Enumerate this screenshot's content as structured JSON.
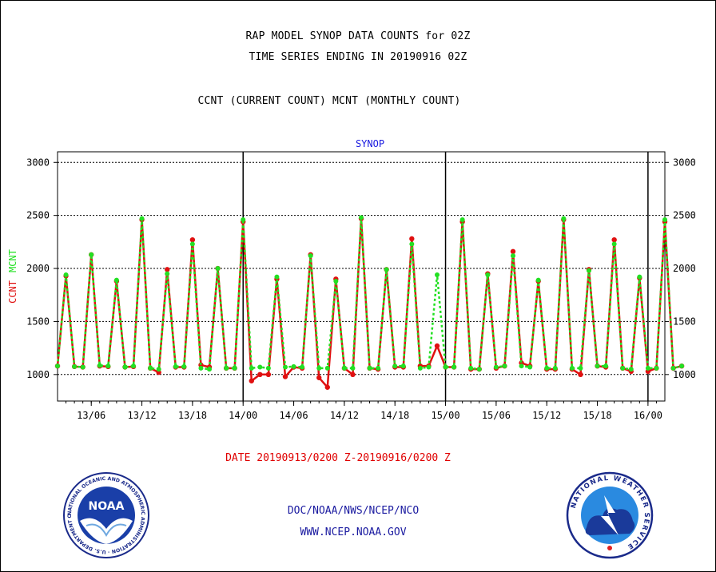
{
  "header": {
    "title_line1": "RAP MODEL SYNOP DATA COUNTS for 02Z",
    "title_line2": "TIME SERIES ENDING IN 20190916 02Z",
    "subtitle": "CCNT (CURRENT COUNT) MCNT (MONTHLY COUNT)"
  },
  "footer": {
    "date_range": "DATE 20190913/0200 Z-20190916/0200 Z",
    "org": "DOC/NOAA/NWS/NCEP/NCO",
    "url": "WWW.NCEP.NOAA.GOV"
  },
  "logos": {
    "left": {
      "name": "noaa-logo",
      "text": "NOAA",
      "ring_text": "NATIONAL OCEANIC AND ATMOSPHERIC ADMINISTRATION · U.S. DEPARTMENT OF COMMERCE"
    },
    "right": {
      "name": "nws-logo",
      "ring_text": "NATIONAL WEATHER SERVICE"
    }
  },
  "colors": {
    "ccnt": "#e01010",
    "mcnt": "#22e022",
    "legend_text": "#1a1ae0"
  },
  "chart_data": {
    "type": "line",
    "title": "SYNOP",
    "ylabel_ccnt": "CCNT",
    "ylabel_mcnt": "MCNT",
    "ylim": [
      750,
      3100
    ],
    "yticks": [
      500,
      1000,
      1500,
      2000,
      2500,
      3000
    ],
    "x_range_hours": [
      0,
      72
    ],
    "xticks": [
      {
        "h": 4,
        "label": "13/06"
      },
      {
        "h": 10,
        "label": "13/12"
      },
      {
        "h": 16,
        "label": "13/18"
      },
      {
        "h": 22,
        "label": "14/00"
      },
      {
        "h": 28,
        "label": "14/06"
      },
      {
        "h": 34,
        "label": "14/12"
      },
      {
        "h": 40,
        "label": "14/18"
      },
      {
        "h": 46,
        "label": "15/00"
      },
      {
        "h": 52,
        "label": "15/06"
      },
      {
        "h": 58,
        "label": "15/12"
      },
      {
        "h": 64,
        "label": "15/18"
      },
      {
        "h": 70,
        "label": "16/00"
      }
    ],
    "day_boundaries_hours": [
      22,
      46,
      70
    ],
    "grid": true,
    "series": [
      {
        "name": "CCNT",
        "values": [
          1080,
          1930,
          1075,
          1070,
          2130,
          1080,
          1075,
          1880,
          1070,
          1075,
          2460,
          1060,
          1020,
          1990,
          1070,
          1070,
          2270,
          1090,
          1070,
          2000,
          1060,
          1060,
          2440,
          940,
          1000,
          1000,
          1900,
          980,
          1070,
          1060,
          2130,
          970,
          880,
          1900,
          1060,
          1000,
          2470,
          1060,
          1050,
          1990,
          1070,
          1070,
          2280,
          1080,
          1080,
          1270,
          1070,
          1070,
          2440,
          1050,
          1050,
          1950,
          1060,
          1080,
          2160,
          1110,
          1080,
          1880,
          1050,
          1050,
          2460,
          1050,
          1000,
          1990,
          1080,
          1070,
          2270,
          1060,
          1030,
          1910,
          1030,
          1060,
          2440,
          1060,
          1080
        ]
      },
      {
        "name": "MCNT",
        "values": [
          1080,
          1940,
          1075,
          1070,
          2130,
          1085,
          1080,
          1890,
          1070,
          1080,
          2470,
          1060,
          1050,
          1950,
          1075,
          1075,
          2230,
          1060,
          1050,
          2000,
          1060,
          1060,
          2460,
          1060,
          1070,
          1060,
          1920,
          1070,
          1075,
          1070,
          2120,
          1060,
          1060,
          1880,
          1060,
          1060,
          2480,
          1060,
          1060,
          1990,
          1080,
          1080,
          2230,
          1060,
          1070,
          1940,
          1070,
          1070,
          2460,
          1060,
          1050,
          1940,
          1070,
          1080,
          2120,
          1080,
          1070,
          1890,
          1060,
          1060,
          2470,
          1060,
          1060,
          1980,
          1080,
          1080,
          2230,
          1060,
          1050,
          1920,
          1060,
          1060,
          2460,
          1060,
          1080
        ]
      }
    ]
  }
}
